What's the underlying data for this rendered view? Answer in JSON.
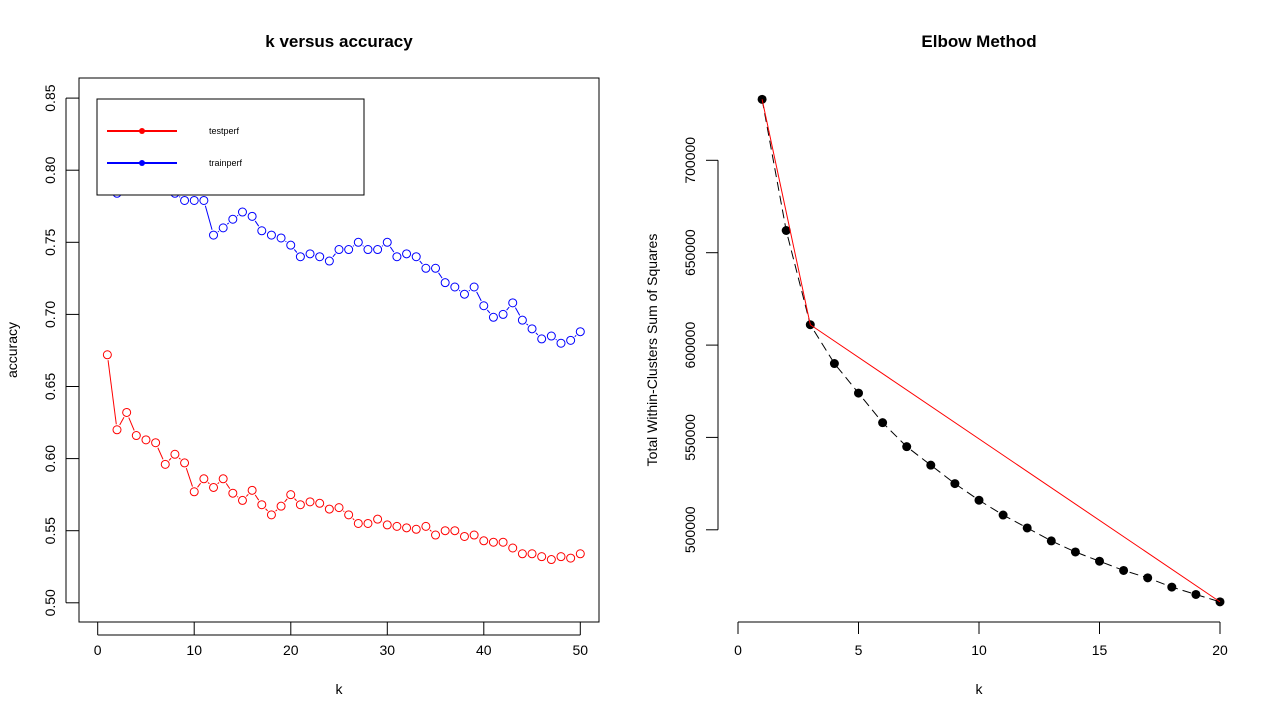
{
  "colors": {
    "test": "#ff0000",
    "train": "#0000ff",
    "elbow_points": "#000000",
    "elbow_line": "#ff0000",
    "axis": "#000000"
  },
  "chart_data": [
    {
      "type": "scatter",
      "title": "k versus accuracy",
      "xlabel": "k",
      "ylabel": "accuracy",
      "xlim": [
        0,
        50
      ],
      "ylim": [
        0.5,
        0.85
      ],
      "xticks": [
        0,
        10,
        20,
        30,
        40,
        50
      ],
      "yticks": [
        0.5,
        0.55,
        0.6,
        0.65,
        0.7,
        0.75,
        0.8,
        0.85
      ],
      "xtick_labels": [
        "0",
        "10",
        "20",
        "30",
        "40",
        "50"
      ],
      "ytick_labels": [
        "0.50",
        "0.55",
        "0.60",
        "0.65",
        "0.70",
        "0.75",
        "0.80",
        "0.85"
      ],
      "legend": {
        "placement": "top-left",
        "entries": [
          "testperf",
          "trainperf"
        ]
      },
      "x": [
        1,
        2,
        3,
        4,
        5,
        6,
        7,
        8,
        9,
        10,
        11,
        12,
        13,
        14,
        15,
        16,
        17,
        18,
        19,
        20,
        21,
        22,
        23,
        24,
        25,
        26,
        27,
        28,
        29,
        30,
        31,
        32,
        33,
        34,
        35,
        36,
        37,
        38,
        39,
        40,
        41,
        42,
        43,
        44,
        45,
        46,
        47,
        48,
        49,
        50
      ],
      "series": [
        {
          "name": "testperf",
          "style": "points-connected",
          "values": [
            0.672,
            0.62,
            0.632,
            0.616,
            0.613,
            0.611,
            0.596,
            0.603,
            0.597,
            0.577,
            0.586,
            0.58,
            0.586,
            0.576,
            0.571,
            0.578,
            0.568,
            0.561,
            0.567,
            0.575,
            0.568,
            0.57,
            0.569,
            0.565,
            0.566,
            0.561,
            0.555,
            0.555,
            0.558,
            0.554,
            0.553,
            0.552,
            0.551,
            0.553,
            0.547,
            0.55,
            0.55,
            0.546,
            0.547,
            0.543,
            0.542,
            0.542,
            0.538,
            0.534,
            0.534,
            0.532,
            0.53,
            0.532,
            0.531,
            0.534
          ]
        },
        {
          "name": "trainperf",
          "style": "points-connected",
          "values": [
            0.79,
            0.784,
            0.79,
            0.792,
            0.795,
            0.795,
            0.79,
            0.784,
            0.779,
            0.779,
            0.779,
            0.755,
            0.76,
            0.766,
            0.771,
            0.768,
            0.758,
            0.755,
            0.753,
            0.748,
            0.74,
            0.742,
            0.74,
            0.737,
            0.745,
            0.745,
            0.75,
            0.745,
            0.745,
            0.75,
            0.74,
            0.742,
            0.74,
            0.732,
            0.732,
            0.722,
            0.719,
            0.714,
            0.719,
            0.706,
            0.698,
            0.7,
            0.708,
            0.696,
            0.69,
            0.683,
            0.685,
            0.68,
            0.682,
            0.688
          ]
        }
      ]
    },
    {
      "type": "line",
      "title": "Elbow Method",
      "xlabel": "k",
      "ylabel": "Total Within-Clusters Sum of Squares",
      "xlim": [
        0,
        20
      ],
      "ylim": [
        460000,
        735000
      ],
      "xticks": [
        0,
        5,
        10,
        15,
        20
      ],
      "yticks": [
        500000,
        550000,
        600000,
        650000,
        700000
      ],
      "xtick_labels": [
        "0",
        "5",
        "10",
        "15",
        "20"
      ],
      "ytick_labels": [
        "500000",
        "550000",
        "600000",
        "650000",
        "700000"
      ],
      "x": [
        1,
        2,
        3,
        4,
        5,
        6,
        7,
        8,
        9,
        10,
        11,
        12,
        13,
        14,
        15,
        16,
        17,
        18,
        19,
        20
      ],
      "series": [
        {
          "style": "dashed-line-with-points",
          "values": [
            733000,
            662000,
            611000,
            590000,
            574000,
            558000,
            545000,
            535000,
            525000,
            516000,
            508000,
            501000,
            494000,
            488000,
            483000,
            478000,
            474000,
            469000,
            465000,
            461000
          ]
        },
        {
          "style": "red-line",
          "x": [
            1,
            3,
            20
          ],
          "values": [
            733000,
            611000,
            461000
          ]
        }
      ]
    }
  ]
}
